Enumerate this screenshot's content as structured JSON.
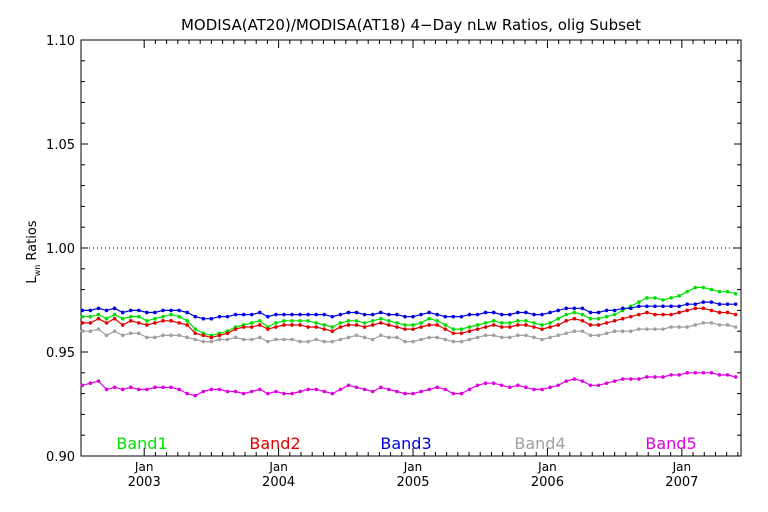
{
  "chart_data": {
    "type": "line",
    "title": "MODISA(AT20)/MODISA(AT18) 4−Day nLw Ratios, olig Subset",
    "ylabel": "Lwn Ratios",
    "ylabel_main": "L",
    "ylabel_sub": "wn",
    "ylabel_rest": " Ratios",
    "xlabel": "",
    "ylim": [
      0.9,
      1.1
    ],
    "xlim": [
      2002.53,
      2007.44
    ],
    "y_ticks": [
      "0.90",
      "0.95",
      "1.00",
      "1.05",
      "1.10"
    ],
    "reference_line": {
      "y": 1.0,
      "style": "dotted",
      "color": "#000000"
    },
    "x_ticks": [
      {
        "x": 2003.0,
        "month": "Jan",
        "year": "2003"
      },
      {
        "x": 2004.0,
        "month": "Jan",
        "year": "2004"
      },
      {
        "x": 2005.0,
        "month": "Jan",
        "year": "2005"
      },
      {
        "x": 2006.0,
        "month": "Jan",
        "year": "2006"
      },
      {
        "x": 2007.0,
        "month": "Jan",
        "year": "2007"
      }
    ],
    "x": [
      2002.54,
      2002.6,
      2002.66,
      2002.72,
      2002.78,
      2002.84,
      2002.9,
      2002.96,
      2003.02,
      2003.08,
      2003.14,
      2003.2,
      2003.26,
      2003.32,
      2003.38,
      2003.44,
      2003.5,
      2003.56,
      2003.62,
      2003.68,
      2003.74,
      2003.8,
      2003.86,
      2003.92,
      2003.98,
      2004.04,
      2004.1,
      2004.16,
      2004.22,
      2004.28,
      2004.34,
      2004.4,
      2004.46,
      2004.52,
      2004.58,
      2004.64,
      2004.7,
      2004.76,
      2004.82,
      2004.88,
      2004.94,
      2005.0,
      2005.06,
      2005.12,
      2005.18,
      2005.24,
      2005.3,
      2005.36,
      2005.42,
      2005.48,
      2005.54,
      2005.6,
      2005.66,
      2005.72,
      2005.78,
      2005.84,
      2005.9,
      2005.96,
      2006.02,
      2006.08,
      2006.14,
      2006.2,
      2006.26,
      2006.32,
      2006.38,
      2006.44,
      2006.5,
      2006.56,
      2006.62,
      2006.68,
      2006.74,
      2006.8,
      2006.86,
      2006.92,
      2006.98,
      2007.04,
      2007.1,
      2007.16,
      2007.22,
      2007.28,
      2007.34,
      2007.4
    ],
    "series": [
      {
        "name": "Band1",
        "color": "#00e000",
        "values": [
          0.967,
          0.967,
          0.968,
          0.966,
          0.968,
          0.966,
          0.967,
          0.967,
          0.965,
          0.966,
          0.967,
          0.968,
          0.967,
          0.965,
          0.961,
          0.959,
          0.958,
          0.959,
          0.96,
          0.962,
          0.963,
          0.964,
          0.965,
          0.962,
          0.964,
          0.965,
          0.965,
          0.965,
          0.965,
          0.964,
          0.963,
          0.962,
          0.964,
          0.965,
          0.965,
          0.964,
          0.965,
          0.966,
          0.965,
          0.964,
          0.963,
          0.963,
          0.964,
          0.966,
          0.965,
          0.963,
          0.961,
          0.961,
          0.962,
          0.963,
          0.964,
          0.965,
          0.964,
          0.964,
          0.965,
          0.965,
          0.964,
          0.963,
          0.964,
          0.966,
          0.968,
          0.969,
          0.968,
          0.966,
          0.966,
          0.967,
          0.968,
          0.97,
          0.972,
          0.974,
          0.976,
          0.976,
          0.975,
          0.976,
          0.977,
          0.979,
          0.981,
          0.981,
          0.98,
          0.979,
          0.979,
          0.978
        ]
      },
      {
        "name": "Band2",
        "color": "#e00000",
        "values": [
          0.964,
          0.964,
          0.966,
          0.964,
          0.966,
          0.963,
          0.965,
          0.964,
          0.963,
          0.964,
          0.965,
          0.965,
          0.964,
          0.963,
          0.959,
          0.958,
          0.957,
          0.958,
          0.959,
          0.961,
          0.962,
          0.962,
          0.963,
          0.961,
          0.962,
          0.963,
          0.963,
          0.963,
          0.962,
          0.962,
          0.961,
          0.96,
          0.962,
          0.963,
          0.963,
          0.962,
          0.963,
          0.964,
          0.963,
          0.962,
          0.961,
          0.961,
          0.962,
          0.963,
          0.963,
          0.961,
          0.959,
          0.959,
          0.96,
          0.961,
          0.962,
          0.963,
          0.962,
          0.962,
          0.963,
          0.963,
          0.962,
          0.961,
          0.962,
          0.963,
          0.965,
          0.966,
          0.965,
          0.963,
          0.963,
          0.964,
          0.965,
          0.966,
          0.967,
          0.968,
          0.969,
          0.968,
          0.968,
          0.968,
          0.969,
          0.97,
          0.971,
          0.971,
          0.97,
          0.969,
          0.969,
          0.968
        ]
      },
      {
        "name": "Band3",
        "color": "#0000e0",
        "values": [
          0.97,
          0.97,
          0.971,
          0.97,
          0.971,
          0.969,
          0.97,
          0.97,
          0.969,
          0.969,
          0.97,
          0.97,
          0.97,
          0.969,
          0.967,
          0.966,
          0.966,
          0.967,
          0.967,
          0.968,
          0.968,
          0.968,
          0.969,
          0.967,
          0.968,
          0.968,
          0.968,
          0.968,
          0.968,
          0.968,
          0.968,
          0.967,
          0.968,
          0.969,
          0.969,
          0.968,
          0.968,
          0.969,
          0.968,
          0.968,
          0.967,
          0.967,
          0.968,
          0.969,
          0.968,
          0.967,
          0.967,
          0.967,
          0.968,
          0.968,
          0.969,
          0.969,
          0.968,
          0.968,
          0.969,
          0.969,
          0.968,
          0.968,
          0.969,
          0.97,
          0.971,
          0.971,
          0.971,
          0.969,
          0.969,
          0.97,
          0.97,
          0.971,
          0.971,
          0.972,
          0.972,
          0.972,
          0.972,
          0.972,
          0.972,
          0.973,
          0.973,
          0.974,
          0.974,
          0.973,
          0.973,
          0.973
        ]
      },
      {
        "name": "Band4",
        "color": "#a0a0a0",
        "values": [
          0.96,
          0.96,
          0.961,
          0.958,
          0.96,
          0.958,
          0.959,
          0.959,
          0.957,
          0.957,
          0.958,
          0.958,
          0.958,
          0.957,
          0.956,
          0.955,
          0.955,
          0.956,
          0.956,
          0.957,
          0.956,
          0.956,
          0.957,
          0.955,
          0.956,
          0.956,
          0.956,
          0.955,
          0.955,
          0.956,
          0.955,
          0.955,
          0.956,
          0.957,
          0.958,
          0.957,
          0.956,
          0.958,
          0.957,
          0.957,
          0.955,
          0.955,
          0.956,
          0.957,
          0.957,
          0.956,
          0.955,
          0.955,
          0.956,
          0.957,
          0.958,
          0.958,
          0.957,
          0.957,
          0.958,
          0.958,
          0.957,
          0.956,
          0.957,
          0.958,
          0.959,
          0.96,
          0.96,
          0.958,
          0.958,
          0.959,
          0.96,
          0.96,
          0.96,
          0.961,
          0.961,
          0.961,
          0.961,
          0.962,
          0.962,
          0.962,
          0.963,
          0.964,
          0.964,
          0.963,
          0.963,
          0.962
        ]
      },
      {
        "name": "Band5",
        "color": "#e000e0",
        "values": [
          0.934,
          0.935,
          0.936,
          0.932,
          0.933,
          0.932,
          0.933,
          0.932,
          0.932,
          0.933,
          0.933,
          0.933,
          0.932,
          0.93,
          0.929,
          0.931,
          0.932,
          0.932,
          0.931,
          0.931,
          0.93,
          0.931,
          0.932,
          0.93,
          0.931,
          0.93,
          0.93,
          0.931,
          0.932,
          0.932,
          0.931,
          0.93,
          0.932,
          0.934,
          0.933,
          0.932,
          0.931,
          0.933,
          0.932,
          0.931,
          0.93,
          0.93,
          0.931,
          0.932,
          0.933,
          0.932,
          0.93,
          0.93,
          0.932,
          0.934,
          0.935,
          0.935,
          0.934,
          0.933,
          0.934,
          0.933,
          0.932,
          0.932,
          0.933,
          0.934,
          0.936,
          0.937,
          0.936,
          0.934,
          0.934,
          0.935,
          0.936,
          0.937,
          0.937,
          0.937,
          0.938,
          0.938,
          0.938,
          0.939,
          0.939,
          0.94,
          0.94,
          0.94,
          0.94,
          0.939,
          0.939,
          0.938
        ]
      }
    ]
  }
}
